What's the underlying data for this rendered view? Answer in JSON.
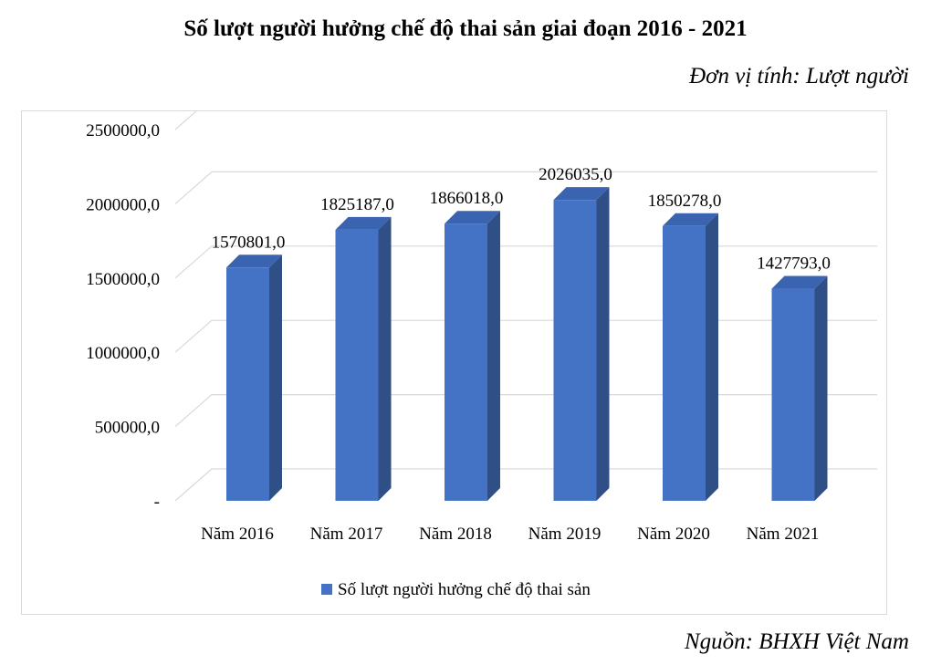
{
  "title": "Số lượt người hưởng chế độ thai sản giai đoạn 2016 - 2021",
  "unit_label": "Đơn vị tính: Lượt người",
  "source": "Nguồn: BHXH Việt Nam",
  "chart_data": {
    "type": "bar",
    "categories": [
      "Năm 2016",
      "Năm 2017",
      "Năm 2018",
      "Năm 2019",
      "Năm 2020",
      "Năm 2021"
    ],
    "series": [
      {
        "name": "Số lượt người hưởng chế độ thai sản",
        "values": [
          1570801,
          1825187,
          1866018,
          2026035,
          1850278,
          1427793
        ],
        "labels": [
          "1570801,0",
          "1825187,0",
          "1866018,0",
          "2026035,0",
          "1850278,0",
          "1427793,0"
        ]
      }
    ],
    "y_ticks": [
      0,
      500000,
      1000000,
      1500000,
      2000000,
      2500000
    ],
    "y_tick_labels": [
      "-",
      "500000,0",
      "1000000,0",
      "1500000,0",
      "2000000,0",
      "2500000,0"
    ],
    "ylim": [
      0,
      2500000
    ],
    "grid": true,
    "style": "3d-column",
    "legend_position": "bottom",
    "colors": {
      "bar_front": "#4472C4",
      "bar_side": "#2F4F86",
      "bar_top": "#3A64B0",
      "grid": "#d9d9d9"
    }
  }
}
